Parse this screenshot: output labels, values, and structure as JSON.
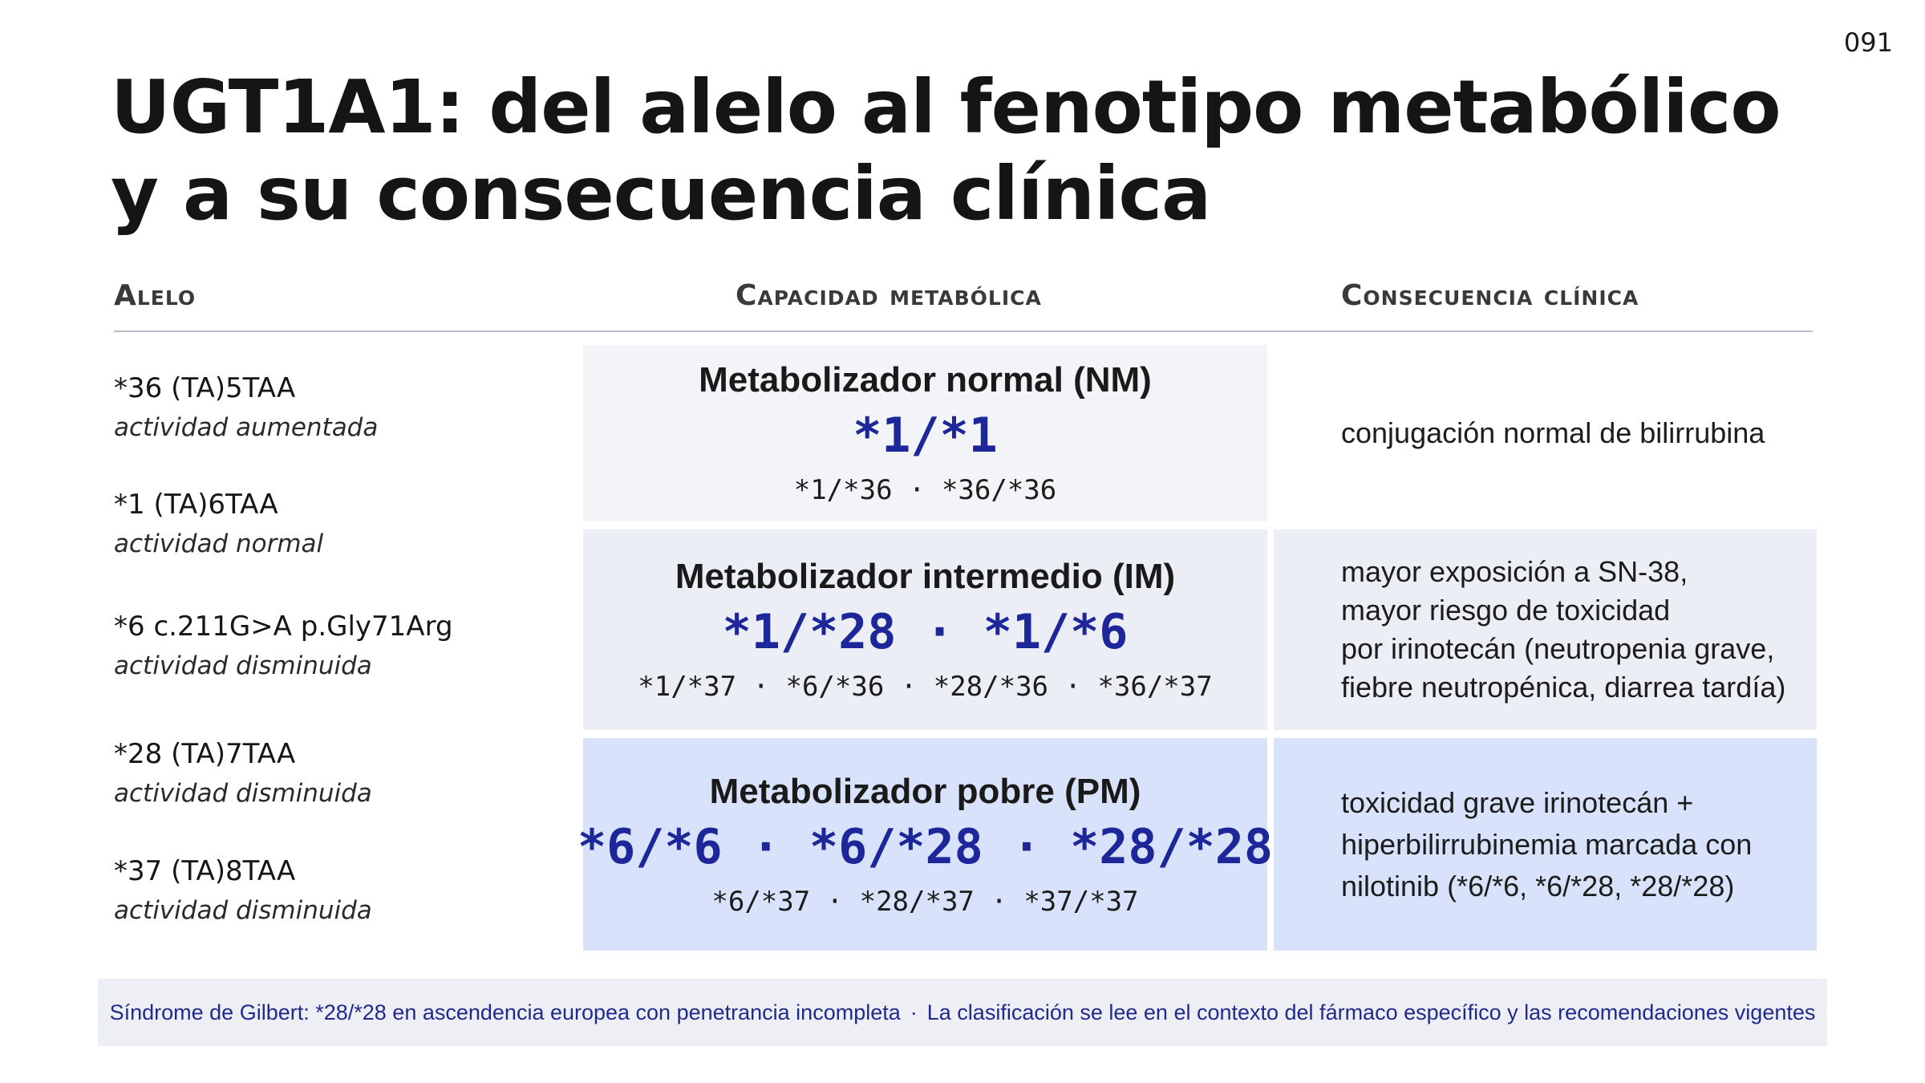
{
  "page_number": "091",
  "title": {
    "line1": "UGT1A1: del alelo al fenotipo metabólico",
    "line2": "y a su consecuencia clínica"
  },
  "headers": {
    "allele": "Alelo",
    "capacity": "Capacidad metabólica",
    "consequence": "Consecuencia clínica"
  },
  "alleles": [
    {
      "name": "*36 (TA)5TAA",
      "activity": "actividad aumentada"
    },
    {
      "name": "*1 (TA)6TAA",
      "activity": "actividad normal"
    },
    {
      "name": "*6 c.211G>A p.Gly71Arg",
      "activity": "actividad disminuida"
    },
    {
      "name": "*28 (TA)7TAA",
      "activity": "actividad disminuida"
    },
    {
      "name": "*37 (TA)8TAA",
      "activity": "actividad disminuida"
    }
  ],
  "phenotypes": [
    {
      "name": "Metabolizador normal (NM)",
      "main": "*1/*1",
      "other": "*1/*36 · *36/*36",
      "consequence": [
        "conjugación normal de bilirrubina"
      ]
    },
    {
      "name": "Metabolizador intermedio (IM)",
      "main": "*1/*28 · *1/*6",
      "other": "*1/*37 · *6/*36 · *28/*36 · *36/*37",
      "consequence": [
        "mayor exposición a SN-38,",
        "mayor riesgo de toxicidad",
        "por irinotecán (neutropenia grave,",
        "fiebre neutropénica, diarrea tardía)"
      ]
    },
    {
      "name": "Metabolizador pobre (PM)",
      "main": "*6/*6 · *6/*28 · *28/*28",
      "other": "*6/*37 · *28/*37 · *37/*37",
      "consequence": [
        "toxicidad grave irinotecán +",
        "hiperbilirrubinemia marcada con",
        "nilotinib (*6/*6, *6/*28, *28/*28)"
      ]
    }
  ],
  "footer": {
    "left": "Síndrome de Gilbert: *28/*28 en ascendencia europea con penetrancia incompleta",
    "separator": "·",
    "right": "La clasificación se lee en el contexto del fármaco específico y las recomendaciones vigentes"
  },
  "colors": {
    "accent_blue": "#1e2799",
    "nm_bg": "#f3f4f7",
    "im_bg": "#eceef6",
    "pm_bg": "#d8e3fb",
    "footer_bg": "#eeeff5"
  }
}
